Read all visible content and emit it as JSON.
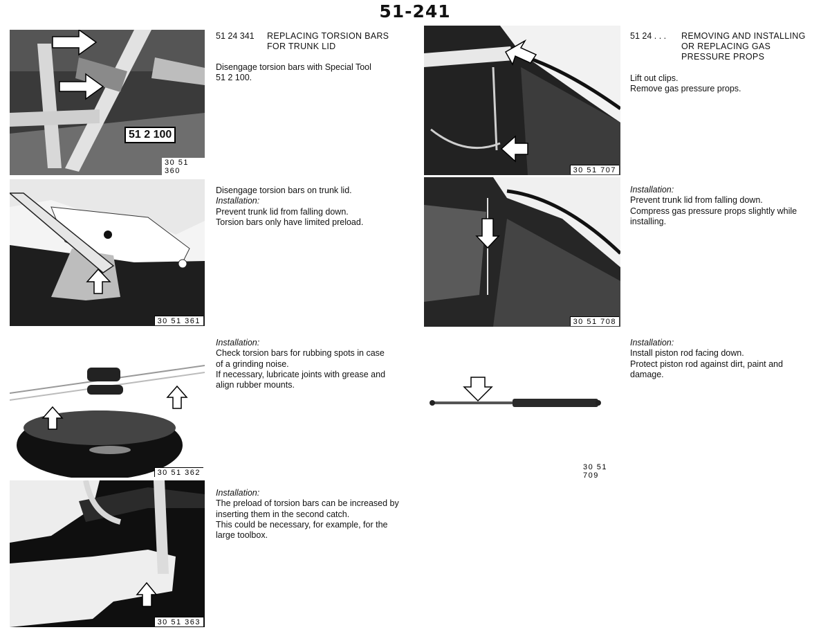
{
  "page": {
    "number": "51-241"
  },
  "left_section": {
    "number": "51 24 341",
    "title": [
      "REPLACING TORSION BARS",
      "FOR TRUNK LID"
    ]
  },
  "right_section": {
    "number": "51 24 . . .",
    "title": [
      "REMOVING AND INSTALLING",
      "OR REPLACING GAS",
      "PRESSURE PROPS"
    ]
  },
  "figures": [
    {
      "label": "30 51 360",
      "tool_tag": "51 2 100"
    },
    {
      "label": "30 51 361"
    },
    {
      "label": "30 51 362"
    },
    {
      "label": "30 51 363"
    },
    {
      "label": "30 51 707"
    },
    {
      "label": "30 51 708"
    },
    {
      "label": "30 51 709"
    }
  ],
  "text_blocks": {
    "b1": [
      "Disengage torsion bars with Special Tool",
      "51 2 100."
    ],
    "b2": [
      "Disengage torsion bars on trunk lid.",
      "Installation:",
      "Prevent trunk lid from falling down.",
      "Torsion bars only have limited preload."
    ],
    "b3": [
      "Installation:",
      "Check torsion bars for rubbing spots in case",
      "of a grinding noise.",
      "If necessary, lubricate joints with grease and",
      "align rubber mounts."
    ],
    "b4": [
      "Installation:",
      "The preload of torsion bars can be increased by",
      "inserting them in the second catch.",
      "This could be necessary, for example, for the",
      "large toolbox."
    ],
    "b5": [
      "Lift out clips.",
      "Remove gas pressure props."
    ],
    "b6": [
      "Installation:",
      "Prevent trunk lid from falling down.",
      "Compress gas pressure props slightly while",
      "installing."
    ],
    "b7": [
      "Installation:",
      "Install piston rod facing down.",
      "Protect piston rod against dirt, paint and",
      "damage."
    ]
  }
}
